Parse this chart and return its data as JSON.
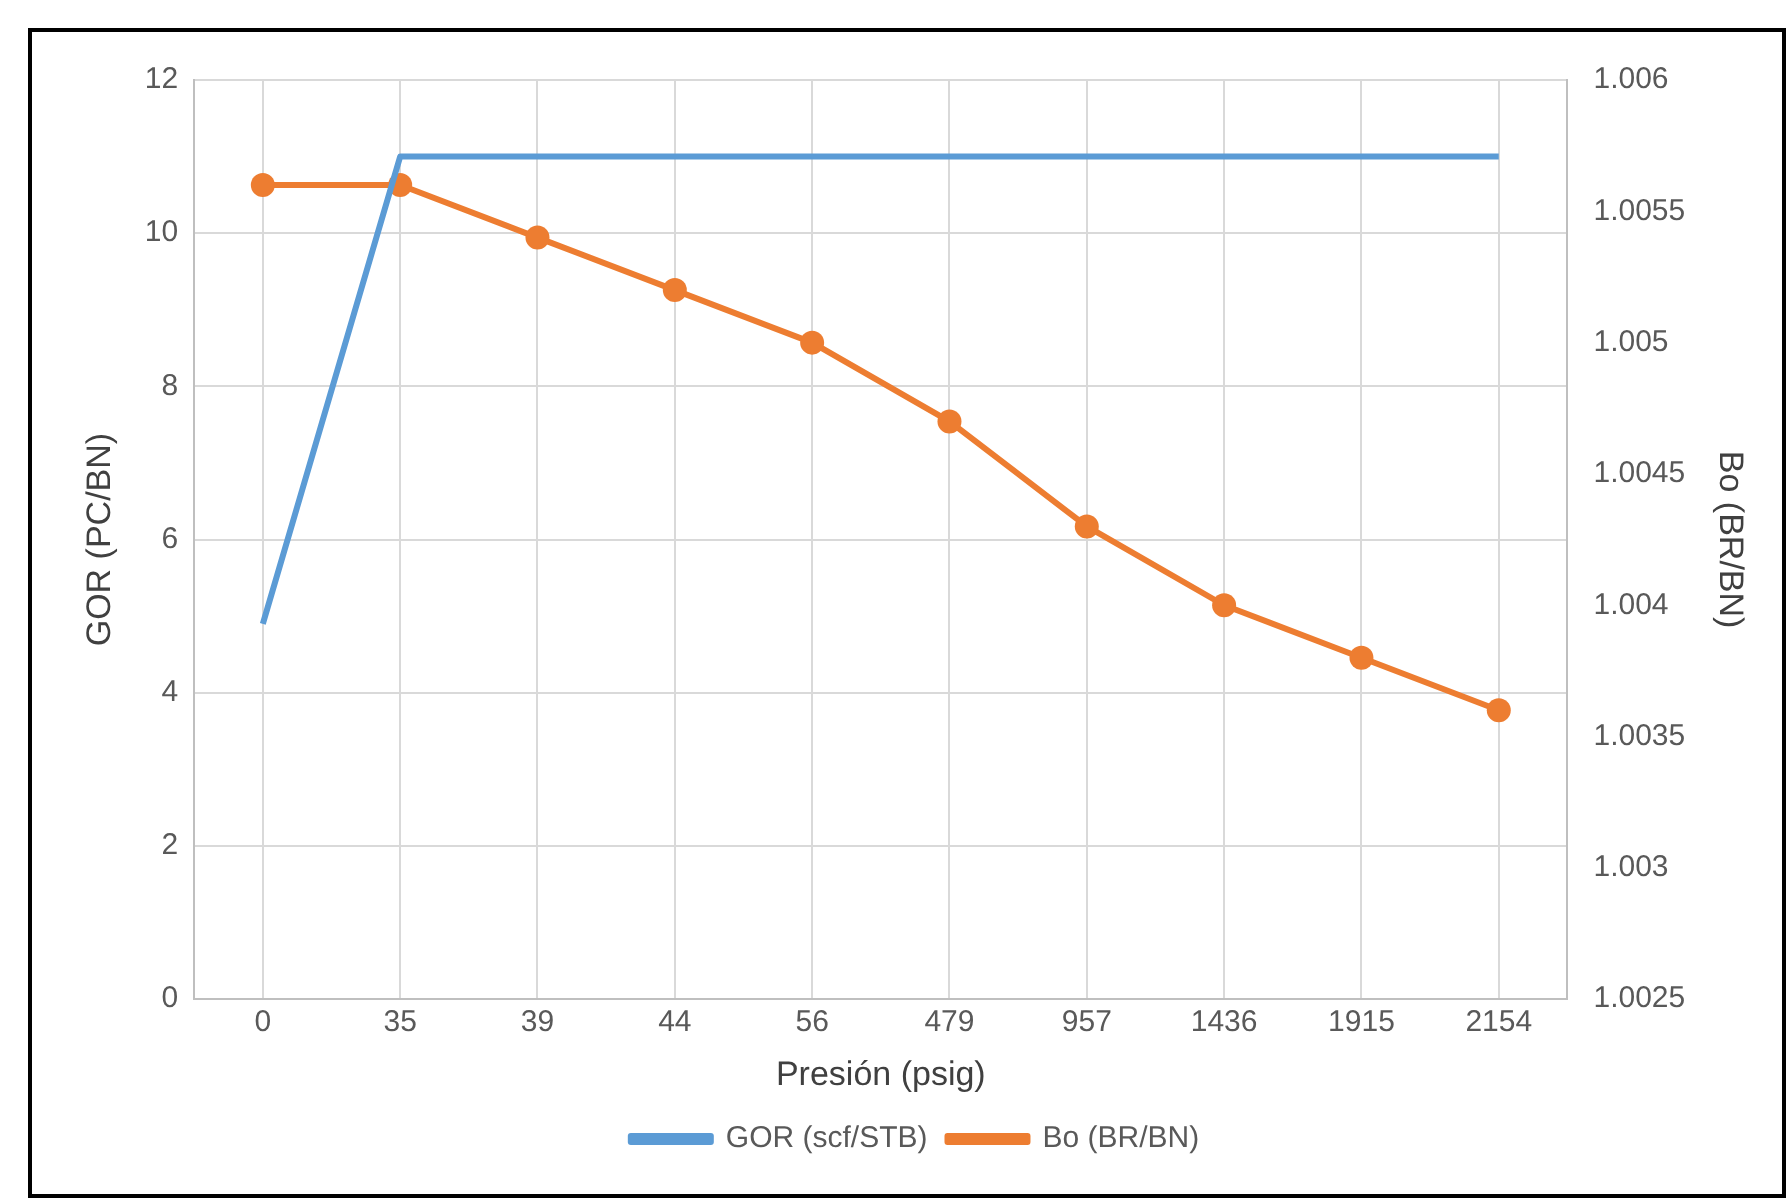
{
  "chart_data": {
    "type": "line",
    "xlabel": "Presión (psig)",
    "ylabel": "GOR (PC/BN)",
    "y2label": "Bo (BR/BN)",
    "categories": [
      "0",
      "35",
      "39",
      "44",
      "56",
      "479",
      "957",
      "1436",
      "1915",
      "2154"
    ],
    "series": [
      {
        "name": "GOR (scf/STB)",
        "color": "#5b9bd5",
        "marker": "none",
        "values": [
          4.9,
          11,
          11,
          11,
          11,
          11,
          11,
          11,
          11,
          11
        ]
      },
      {
        "name": "Bo (BR/BN)",
        "color": "#ed7d31",
        "marker": "circle",
        "axis": "y2",
        "values": [
          1.0056,
          1.0056,
          1.0054,
          1.0052,
          1.005,
          1.0047,
          1.0043,
          1.004,
          1.0038,
          1.0036
        ]
      }
    ],
    "ylim": [
      0,
      12
    ],
    "yticks": [
      0,
      2,
      4,
      6,
      8,
      10,
      12
    ],
    "y2lim": [
      1.0025,
      1.006
    ],
    "y2ticks": [
      1.0025,
      1.003,
      1.0035,
      1.004,
      1.0045,
      1.005,
      1.0055,
      1.006
    ],
    "grid": true,
    "legend": "bottom"
  }
}
